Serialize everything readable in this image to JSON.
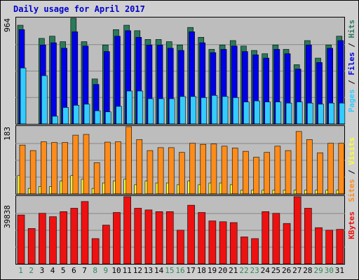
{
  "title": "Daily usage for April 2017",
  "colors": {
    "hits": "#2b7a5a",
    "files": "#0000e6",
    "pages": "#33ccff",
    "visits": "#ff8c1a",
    "sites": "#ffff33",
    "kbytes": "#ee1111",
    "weekday_label": "#000000",
    "weekend_label": "#2e8b57"
  },
  "labels": {
    "ymax_top": "964",
    "ymax_mid": "183",
    "ymax_bot": "39838",
    "side_top": [
      "Pages",
      " / ",
      "Files",
      " / ",
      "Hits"
    ],
    "side_mid": [
      "Sites",
      " / ",
      "Visits"
    ],
    "side_bot": [
      "KBytes"
    ]
  },
  "chart_data": [
    {
      "type": "bar",
      "title": "Daily usage for April 2017",
      "ylim": [
        0,
        964
      ],
      "categories": [
        "1",
        "2",
        "3",
        "4",
        "5",
        "6",
        "7",
        "8",
        "9",
        "10",
        "11",
        "12",
        "13",
        "14",
        "15",
        "16",
        "17",
        "18",
        "19",
        "20",
        "21",
        "22",
        "23",
        "24",
        "25",
        "26",
        "27",
        "28",
        "29",
        "30",
        "31"
      ],
      "series": [
        {
          "name": "Hits",
          "values": [
            900,
            0,
            780,
            800,
            750,
            964,
            750,
            410,
            720,
            860,
            900,
            850,
            770,
            770,
            750,
            720,
            880,
            790,
            680,
            720,
            760,
            710,
            670,
            640,
            720,
            680,
            540,
            760,
            600,
            720,
            800
          ]
        },
        {
          "name": "Files",
          "values": [
            860,
            0,
            720,
            740,
            690,
            840,
            710,
            360,
            660,
            800,
            850,
            790,
            720,
            720,
            690,
            670,
            840,
            740,
            650,
            680,
            710,
            660,
            630,
            600,
            680,
            640,
            500,
            720,
            560,
            690,
            760
          ]
        },
        {
          "name": "Pages",
          "values": [
            510,
            0,
            440,
            70,
            150,
            170,
            180,
            120,
            110,
            160,
            300,
            300,
            230,
            230,
            230,
            250,
            250,
            240,
            260,
            250,
            240,
            200,
            210,
            200,
            200,
            190,
            200,
            190,
            180,
            190,
            190
          ]
        }
      ],
      "categories_note_days": "1 2 3 4 5 6 7 8 9 10 11 12 13 14 15 16 17 18 19 20 21 22 23 24 25 26 27 28 29 30 31"
    },
    {
      "type": "bar",
      "ylim": [
        0,
        183
      ],
      "categories": [
        "1",
        "2",
        "3",
        "4",
        "5",
        "6",
        "7",
        "8",
        "9",
        "10",
        "11",
        "12",
        "13",
        "14",
        "15",
        "16",
        "17",
        "18",
        "19",
        "20",
        "21",
        "22",
        "23",
        "24",
        "25",
        "26",
        "27",
        "28",
        "29",
        "30",
        "31"
      ],
      "series": [
        {
          "name": "Visits",
          "values": [
            133,
            118,
            142,
            140,
            140,
            160,
            162,
            85,
            141,
            142,
            183,
            148,
            118,
            126,
            126,
            113,
            138,
            135,
            136,
            130,
            125,
            116,
            100,
            113,
            130,
            118,
            170,
            148,
            112,
            138,
            138
          ]
        },
        {
          "name": "Sites",
          "values": [
            50,
            15,
            20,
            20,
            35,
            50,
            40,
            15,
            30,
            35,
            40,
            25,
            35,
            30,
            30,
            25,
            35,
            25,
            30,
            30,
            25,
            10,
            10,
            10,
            10,
            10,
            10,
            10,
            10,
            10,
            10
          ]
        }
      ]
    },
    {
      "type": "bar",
      "ylim": [
        0,
        39838
      ],
      "categories": [
        "1",
        "2",
        "3",
        "4",
        "5",
        "6",
        "7",
        "8",
        "9",
        "10",
        "11",
        "12",
        "13",
        "14",
        "15",
        "16",
        "17",
        "18",
        "19",
        "20",
        "21",
        "22",
        "23",
        "24",
        "25",
        "26",
        "27",
        "28",
        "29",
        "30",
        "31"
      ],
      "series": [
        {
          "name": "KBytes",
          "values": [
            29000,
            21000,
            30000,
            28000,
            31000,
            33000,
            37000,
            15000,
            23000,
            30500,
            39838,
            33000,
            32000,
            31000,
            31000,
            20000,
            34800,
            30500,
            25500,
            25000,
            24500,
            16000,
            15000,
            31000,
            30000,
            24000,
            39838,
            33000,
            21500,
            20000,
            20500
          ]
        }
      ]
    }
  ],
  "days": [
    "1",
    "2",
    "3",
    "4",
    "5",
    "6",
    "7",
    "8",
    "9",
    "10",
    "11",
    "12",
    "13",
    "14",
    "15",
    "16",
    "17",
    "18",
    "19",
    "20",
    "21",
    "22",
    "23",
    "24",
    "25",
    "26",
    "27",
    "28",
    "29",
    "30",
    "31"
  ],
  "weekend_days": [
    1,
    2,
    8,
    9,
    15,
    16,
    22,
    23,
    29,
    30
  ]
}
